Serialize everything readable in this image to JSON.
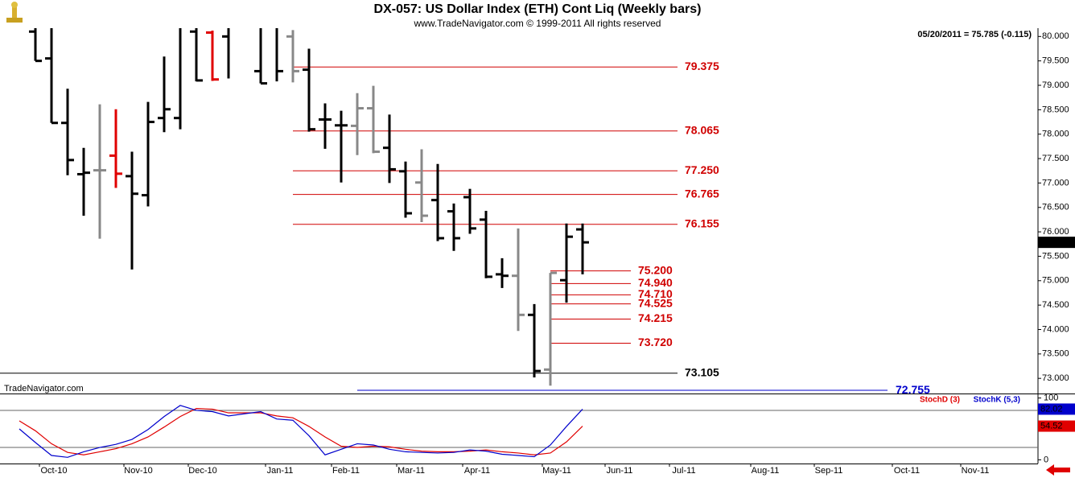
{
  "chart_data": [
    {
      "type": "ohlc",
      "title": "DX-057:  US Dollar Index (ETH) Cont Liq  (Weekly bars)",
      "subtitle": "www.TradeNavigator.com © 1999-2011 All rights reserved",
      "quote": "05/20/2011 = 75.785 (-0.115)",
      "watermark": "TradeNavigator.com",
      "x": [
        0,
        1,
        2,
        3,
        4,
        5,
        6,
        7,
        8,
        9,
        10,
        11,
        12,
        14,
        15,
        16,
        17,
        18,
        19,
        20,
        21,
        22,
        23,
        24,
        25,
        26,
        27,
        28,
        29,
        30,
        31,
        32,
        33,
        34
      ],
      "open": [
        80.1,
        79.55,
        78.23,
        77.18,
        77.26,
        77.56,
        77.14,
        76.75,
        78.33,
        78.33,
        80.1,
        80.08,
        80.0,
        79.29,
        80.2,
        80.0,
        79.32,
        78.3,
        78.18,
        78.17,
        78.53,
        77.72,
        77.24,
        77.01,
        76.65,
        76.42,
        76.71,
        76.25,
        75.13,
        75.1,
        74.3,
        73.18,
        75.01,
        76.05
      ],
      "high": [
        80.3,
        80.25,
        78.93,
        77.72,
        78.61,
        78.51,
        77.64,
        78.66,
        79.59,
        80.3,
        80.3,
        80.12,
        80.3,
        80.3,
        80.3,
        80.13,
        79.75,
        78.63,
        78.48,
        78.84,
        78.99,
        78.4,
        77.44,
        77.69,
        77.39,
        76.58,
        76.88,
        76.43,
        75.46,
        76.07,
        74.52,
        75.16,
        76.17,
        76.17
      ],
      "low": [
        79.5,
        78.23,
        77.16,
        76.33,
        75.86,
        76.9,
        75.23,
        76.52,
        78.04,
        78.1,
        79.08,
        79.09,
        79.14,
        79.04,
        79.08,
        79.06,
        78.05,
        77.7,
        77.01,
        77.57,
        77.61,
        77.0,
        76.29,
        76.2,
        75.81,
        75.61,
        75.96,
        75.05,
        74.85,
        73.97,
        73.02,
        72.85,
        74.55,
        75.13
      ],
      "close": [
        79.5,
        78.23,
        77.47,
        77.21,
        77.26,
        77.19,
        76.78,
        78.25,
        78.51,
        80.2,
        79.1,
        79.12,
        80.25,
        79.04,
        79.29,
        79.29,
        78.1,
        78.3,
        78.18,
        78.53,
        77.64,
        77.28,
        76.38,
        76.33,
        75.87,
        75.87,
        76.07,
        75.08,
        75.1,
        74.3,
        73.15,
        75.16,
        75.9,
        75.785
      ],
      "colors": [
        "#000",
        "#000",
        "#000",
        "#000",
        "#888",
        "#e00000",
        "#000",
        "#000",
        "#000",
        "#000",
        "#000",
        "#e00000",
        "#000",
        "#000",
        "#000",
        "#888",
        "#000",
        "#000",
        "#000",
        "#888",
        "#888",
        "#000",
        "#000",
        "#888",
        "#000",
        "#000",
        "#000",
        "#000",
        "#000",
        "#888",
        "#000",
        "#888",
        "#000",
        "#000"
      ],
      "xlim": [
        -2.2,
        62.3
      ],
      "ylim": [
        72.69,
        80.17
      ],
      "yticks": [
        {
          "value": 73,
          "label": "73.000"
        },
        {
          "value": 73.5,
          "label": "73.500"
        },
        {
          "value": 74,
          "label": "74.000"
        },
        {
          "value": 74.5,
          "label": "74.500"
        },
        {
          "value": 75,
          "label": "75.000"
        },
        {
          "value": 75.5,
          "label": "75.500"
        },
        {
          "value": 76,
          "label": "76.000"
        },
        {
          "value": 76.5,
          "label": "76.500"
        },
        {
          "value": 77,
          "label": "77.000"
        },
        {
          "value": 77.5,
          "label": "77.500"
        },
        {
          "value": 78,
          "label": "78.000"
        },
        {
          "value": 78.5,
          "label": "78.500"
        },
        {
          "value": 79,
          "label": "79.000"
        },
        {
          "value": 79.5,
          "label": "79.500"
        },
        {
          "value": 80,
          "label": "80.000"
        }
      ],
      "levels": [
        {
          "value": 79.375,
          "label": "79.375",
          "color": "#d00000",
          "x": [
            16,
            39.9
          ]
        },
        {
          "value": 78.065,
          "label": "78.065",
          "color": "#d00000",
          "x": [
            16,
            39.9
          ]
        },
        {
          "value": 77.25,
          "label": "77.250",
          "color": "#d00000",
          "x": [
            16,
            39.9
          ]
        },
        {
          "value": 76.765,
          "label": "76.765",
          "color": "#d00000",
          "x": [
            16,
            39.9
          ]
        },
        {
          "value": 76.155,
          "label": "76.155",
          "color": "#d00000",
          "x": [
            16,
            39.9
          ]
        },
        {
          "value": 75.2,
          "label": "75.200",
          "color": "#d00000",
          "x": [
            32,
            37
          ]
        },
        {
          "value": 74.94,
          "label": "74.940",
          "color": "#d00000",
          "x": [
            32,
            37
          ]
        },
        {
          "value": 74.71,
          "label": "74.710",
          "color": "#d00000",
          "x": [
            32,
            37
          ]
        },
        {
          "value": 74.525,
          "label": "74.525",
          "color": "#d00000",
          "x": [
            32,
            37
          ]
        },
        {
          "value": 74.215,
          "label": "74.215",
          "color": "#d00000",
          "x": [
            32,
            37
          ]
        },
        {
          "value": 73.72,
          "label": "73.720",
          "color": "#d00000",
          "x": [
            32,
            37
          ]
        },
        {
          "value": 73.105,
          "label": "73.105",
          "color": "#000000",
          "x": [
            -2.2,
            39.9
          ]
        },
        {
          "value": 72.755,
          "label": "72.755",
          "color": "#0000cc",
          "x": [
            20,
            52.95
          ]
        }
      ]
    },
    {
      "type": "line",
      "x": [
        -1,
        0,
        1,
        2,
        3,
        4,
        5,
        6,
        7,
        8,
        9,
        10,
        11,
        12,
        14,
        15,
        16,
        17,
        18,
        19,
        20,
        21,
        22,
        23,
        24,
        25,
        26,
        27,
        28,
        29,
        30,
        31,
        32,
        33,
        34
      ],
      "series": [
        {
          "name": "StochD (3)",
          "color": "#e00000",
          "values": [
            63,
            47,
            26,
            12,
            8,
            13,
            18,
            26,
            37,
            53,
            70,
            83,
            82,
            76,
            76,
            71,
            68,
            54,
            37,
            22,
            20,
            22,
            21,
            17,
            14,
            13,
            13,
            14,
            16,
            13,
            11,
            8,
            11,
            29,
            54.52
          ]
        },
        {
          "name": "StochK (5,3)",
          "color": "#0000cc",
          "values": [
            50,
            28,
            7,
            4,
            13,
            20,
            25,
            33,
            49,
            70,
            88,
            80,
            78,
            71,
            78,
            66,
            64,
            39,
            8,
            17,
            26,
            24,
            17,
            13,
            12,
            11,
            12,
            16,
            14,
            9,
            7,
            5,
            24,
            54,
            82.02
          ]
        }
      ],
      "xlim": [
        -2.2,
        62.3
      ],
      "ylim": [
        -6,
        106
      ],
      "yticks": [
        0,
        50,
        100
      ],
      "reference_lines": [
        80,
        20
      ],
      "xticks": [
        {
          "value": 1.15,
          "label": "Oct-10"
        },
        {
          "value": 6.4,
          "label": "Nov-10"
        },
        {
          "value": 10.4,
          "label": "Dec-10"
        },
        {
          "value": 15.2,
          "label": "Jan-11"
        },
        {
          "value": 19.3,
          "label": "Feb-11"
        },
        {
          "value": 23.35,
          "label": "Mar-11"
        },
        {
          "value": 27.45,
          "label": "Apr-11"
        },
        {
          "value": 32.4,
          "label": "May-11"
        },
        {
          "value": 36.3,
          "label": "Jun-11"
        },
        {
          "value": 40.3,
          "label": "Jul-11"
        },
        {
          "value": 45.35,
          "label": "Aug-11"
        },
        {
          "value": 49.3,
          "label": "Sep-11"
        },
        {
          "value": 54.15,
          "label": "Oct-11"
        },
        {
          "value": 58.4,
          "label": "Nov-11"
        }
      ]
    }
  ]
}
